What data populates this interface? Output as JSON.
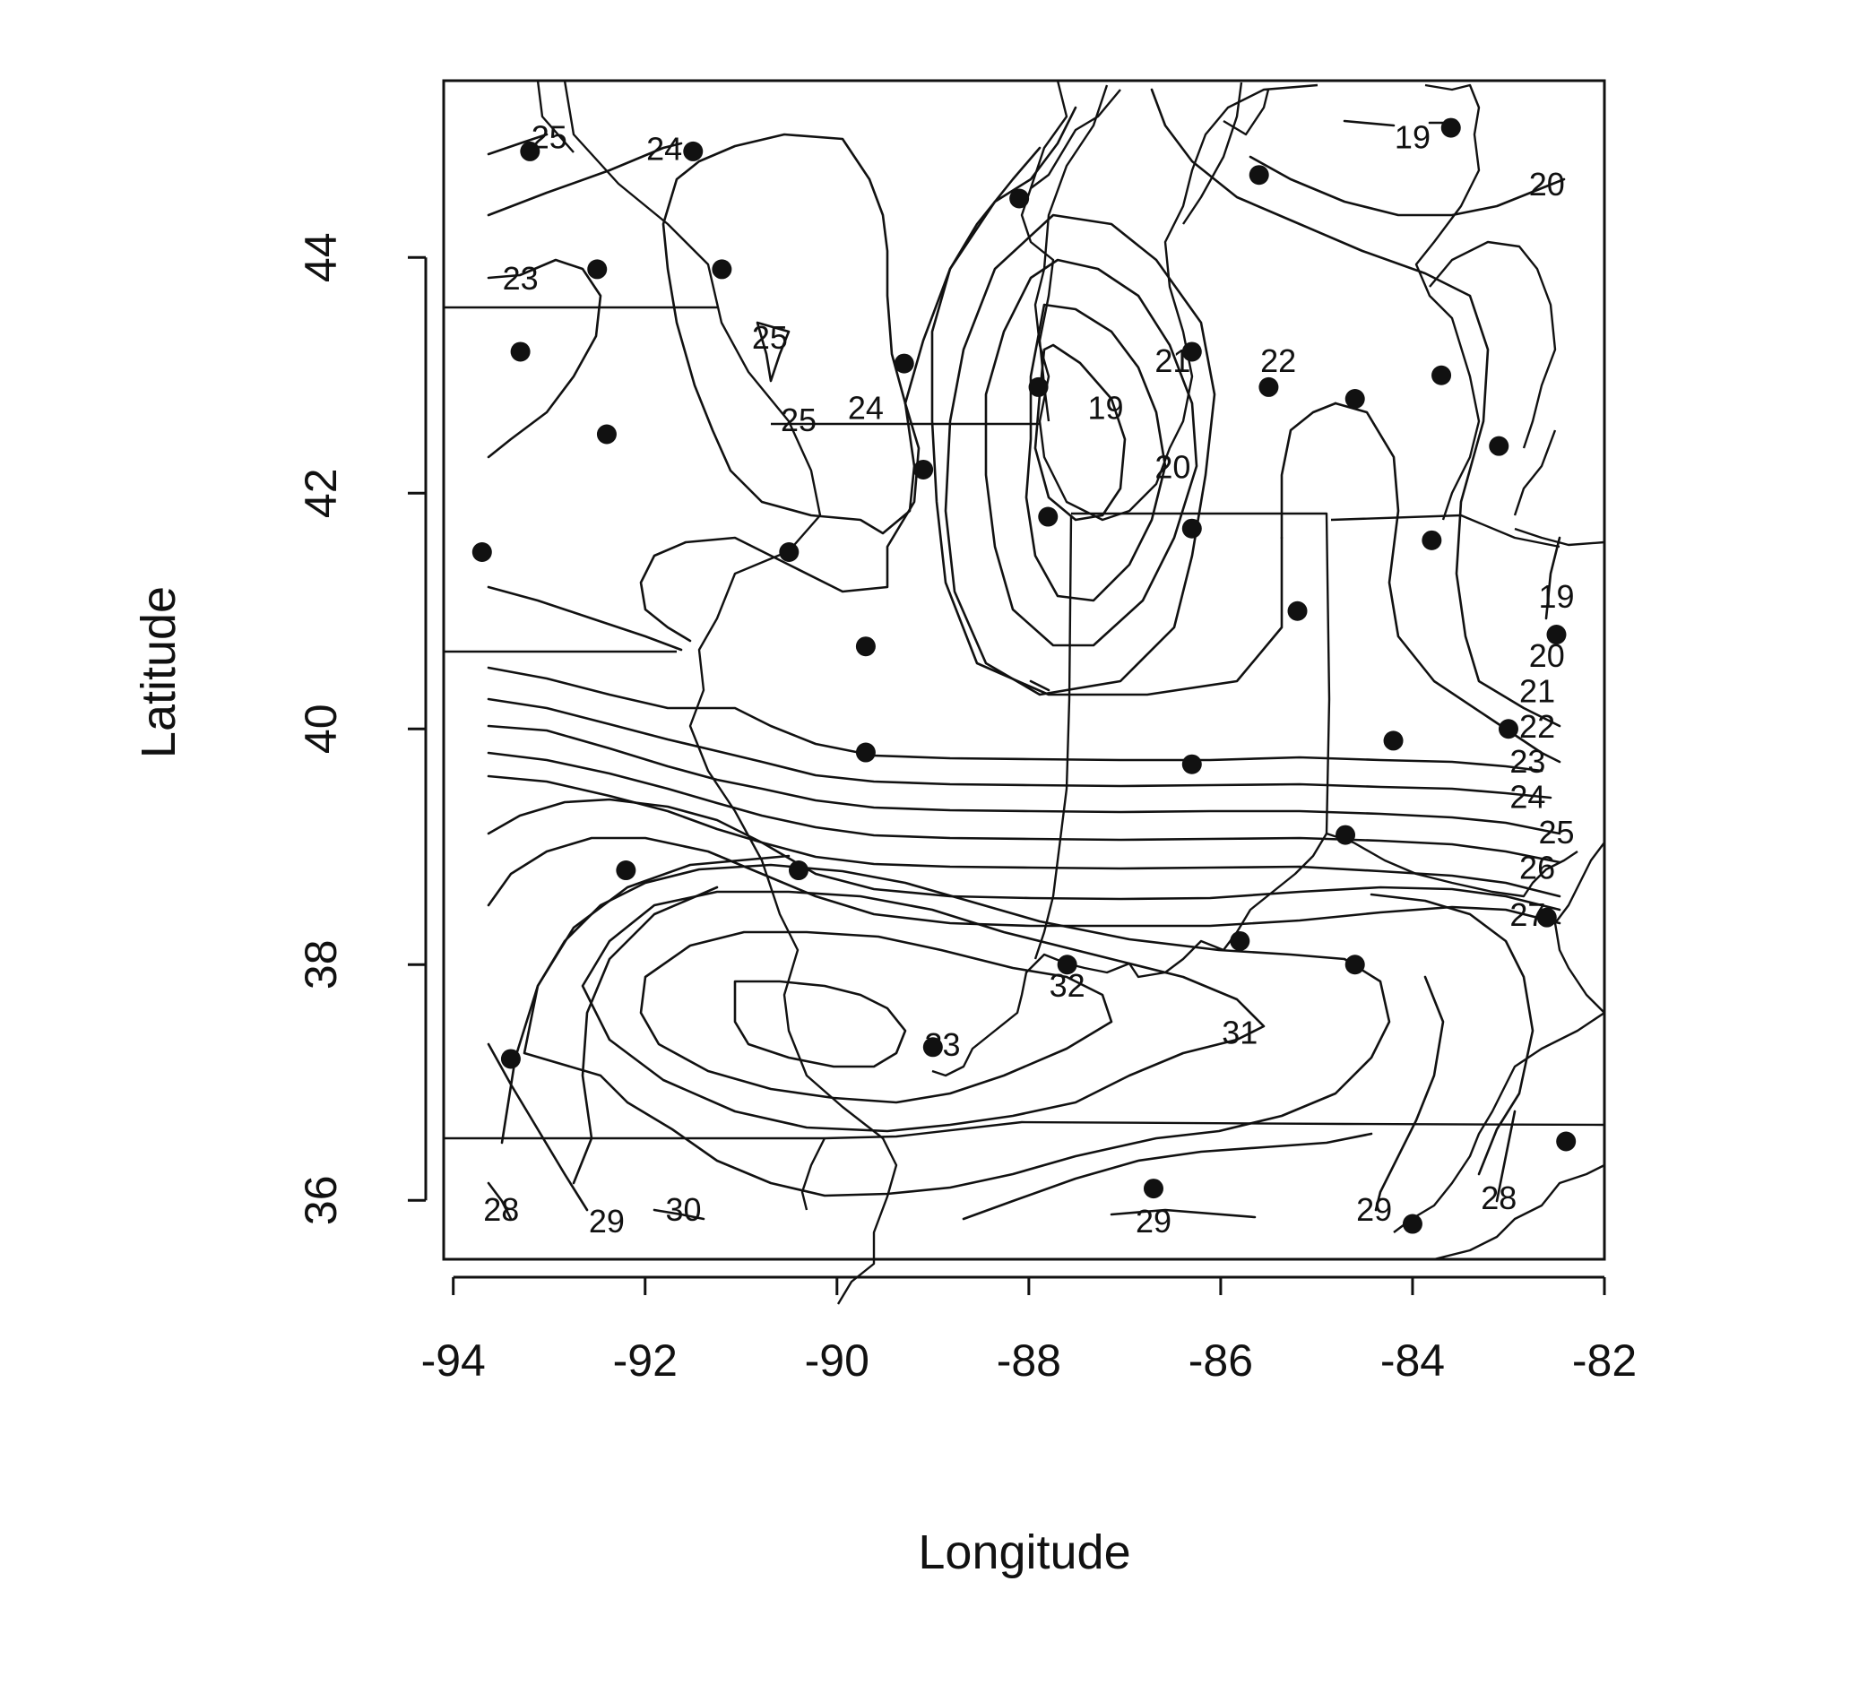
{
  "chart_data": {
    "type": "contour",
    "xlabel": "Longitude",
    "ylabel": "Latitude",
    "xlim": [
      -94.1,
      -82
    ],
    "ylim": [
      35.5,
      45.5
    ],
    "x_ticks": [
      "-94",
      "-92",
      "-90",
      "-88",
      "-86",
      "-84",
      "-82"
    ],
    "y_ticks": [
      "36",
      "38",
      "40",
      "42",
      "44"
    ],
    "stations": [
      [
        -93.2,
        44.9
      ],
      [
        -91.5,
        44.9
      ],
      [
        -92.5,
        43.9
      ],
      [
        -91.2,
        43.9
      ],
      [
        -88.1,
        44.5
      ],
      [
        -85.6,
        44.7
      ],
      [
        -83.6,
        45.1
      ],
      [
        -93.3,
        43.2
      ],
      [
        -89.3,
        43.1
      ],
      [
        -87.9,
        42.9
      ],
      [
        -86.3,
        43.2
      ],
      [
        -85.5,
        42.9
      ],
      [
        -84.6,
        42.8
      ],
      [
        -83.7,
        43.0
      ],
      [
        -83.1,
        42.4
      ],
      [
        -92.4,
        42.5
      ],
      [
        -89.1,
        42.2
      ],
      [
        -87.8,
        41.8
      ],
      [
        -86.3,
        41.7
      ],
      [
        -83.8,
        41.6
      ],
      [
        -93.7,
        41.5
      ],
      [
        -90.5,
        41.5
      ],
      [
        -85.2,
        41.0
      ],
      [
        -82.5,
        40.8
      ],
      [
        -89.7,
        40.7
      ],
      [
        -89.7,
        39.8
      ],
      [
        -86.3,
        39.7
      ],
      [
        -84.2,
        39.9
      ],
      [
        -83.0,
        40.0
      ],
      [
        -92.2,
        38.8
      ],
      [
        -90.4,
        38.8
      ],
      [
        -84.7,
        39.1
      ],
      [
        -82.6,
        38.4
      ],
      [
        -87.6,
        38.0
      ],
      [
        -85.8,
        38.2
      ],
      [
        -84.6,
        38.0
      ],
      [
        -89.0,
        37.3
      ],
      [
        -93.4,
        37.2
      ],
      [
        -86.7,
        36.1
      ],
      [
        -84.0,
        35.8
      ],
      [
        -82.4,
        36.5
      ]
    ],
    "contour_labels": [
      {
        "text": "25",
        "lon": -93.0,
        "lat": 45.0
      },
      {
        "text": "24",
        "lon": -91.8,
        "lat": 44.9
      },
      {
        "text": "23",
        "lon": -93.3,
        "lat": 43.8
      },
      {
        "text": "25",
        "lon": -90.7,
        "lat": 43.3
      },
      {
        "text": "25",
        "lon": -90.4,
        "lat": 42.6
      },
      {
        "text": "24",
        "lon": -89.7,
        "lat": 42.7
      },
      {
        "text": "19",
        "lon": -87.2,
        "lat": 42.7
      },
      {
        "text": "20",
        "lon": -86.5,
        "lat": 42.2
      },
      {
        "text": "21",
        "lon": -86.5,
        "lat": 43.1
      },
      {
        "text": "22",
        "lon": -85.4,
        "lat": 43.1
      },
      {
        "text": "19",
        "lon": -84.0,
        "lat": 45.0
      },
      {
        "text": "20",
        "lon": -82.6,
        "lat": 44.6
      },
      {
        "text": "19",
        "lon": -82.5,
        "lat": 41.1
      },
      {
        "text": "20",
        "lon": -82.6,
        "lat": 40.6
      },
      {
        "text": "21",
        "lon": -82.7,
        "lat": 40.3
      },
      {
        "text": "22",
        "lon": -82.7,
        "lat": 40.0
      },
      {
        "text": "23",
        "lon": -82.8,
        "lat": 39.7
      },
      {
        "text": "24",
        "lon": -82.8,
        "lat": 39.4
      },
      {
        "text": "25",
        "lon": -82.5,
        "lat": 39.1
      },
      {
        "text": "26",
        "lon": -82.7,
        "lat": 38.8
      },
      {
        "text": "27",
        "lon": -82.8,
        "lat": 38.4
      },
      {
        "text": "32",
        "lon": -87.6,
        "lat": 37.8
      },
      {
        "text": "33",
        "lon": -88.9,
        "lat": 37.3
      },
      {
        "text": "31",
        "lon": -85.8,
        "lat": 37.4
      },
      {
        "text": "28",
        "lon": -93.5,
        "lat": 35.9
      },
      {
        "text": "29",
        "lon": -92.4,
        "lat": 35.8
      },
      {
        "text": "30",
        "lon": -91.6,
        "lat": 35.9
      },
      {
        "text": "29",
        "lon": -86.7,
        "lat": 35.8
      },
      {
        "text": "29",
        "lon": -84.4,
        "lat": 35.9
      },
      {
        "text": "28",
        "lon": -83.1,
        "lat": 36.0
      }
    ]
  }
}
